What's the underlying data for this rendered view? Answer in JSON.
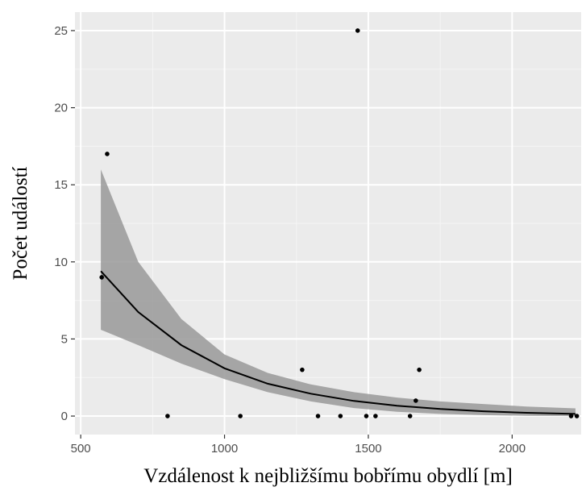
{
  "chart_data": {
    "type": "scatter",
    "title": "",
    "xlabel": "Vzdálenost k nejbližšímu bobřímu obydlí [m]",
    "ylabel": "Počet událostí",
    "xlim": [
      480,
      2240
    ],
    "ylim": [
      -1.2,
      26.2
    ],
    "x_ticks": [
      500,
      1000,
      1500,
      2000
    ],
    "y_ticks": [
      0,
      5,
      10,
      15,
      20,
      25
    ],
    "grid": true,
    "points": [
      {
        "x": 573,
        "y": 9
      },
      {
        "x": 592,
        "y": 17
      },
      {
        "x": 802,
        "y": 0
      },
      {
        "x": 1055,
        "y": 0
      },
      {
        "x": 1270,
        "y": 3
      },
      {
        "x": 1325,
        "y": 0
      },
      {
        "x": 1403,
        "y": 0
      },
      {
        "x": 1463,
        "y": 25
      },
      {
        "x": 1493,
        "y": 0
      },
      {
        "x": 1525,
        "y": 0
      },
      {
        "x": 1645,
        "y": 0
      },
      {
        "x": 1665,
        "y": 1
      },
      {
        "x": 1677,
        "y": 3
      },
      {
        "x": 2205,
        "y": 0
      },
      {
        "x": 2225,
        "y": 0
      }
    ],
    "fit": {
      "x": [
        570,
        700,
        850,
        1000,
        1150,
        1300,
        1450,
        1600,
        1750,
        1900,
        2050,
        2220
      ],
      "y": [
        9.4,
        6.75,
        4.6,
        3.1,
        2.1,
        1.45,
        0.98,
        0.67,
        0.46,
        0.31,
        0.21,
        0.14
      ],
      "lower": [
        5.6,
        4.6,
        3.4,
        2.4,
        1.55,
        0.95,
        0.52,
        0.28,
        0.14,
        0.06,
        0.02,
        0.0
      ],
      "upper": [
        16.0,
        10.0,
        6.3,
        4.0,
        2.8,
        2.05,
        1.55,
        1.2,
        0.95,
        0.78,
        0.62,
        0.5
      ]
    },
    "colors": {
      "panel": "#ebebeb",
      "grid_major": "#ffffff",
      "grid_minor": "#f5f5f5",
      "ribbon": "#999999",
      "line": "#000000",
      "point": "#000000"
    }
  }
}
